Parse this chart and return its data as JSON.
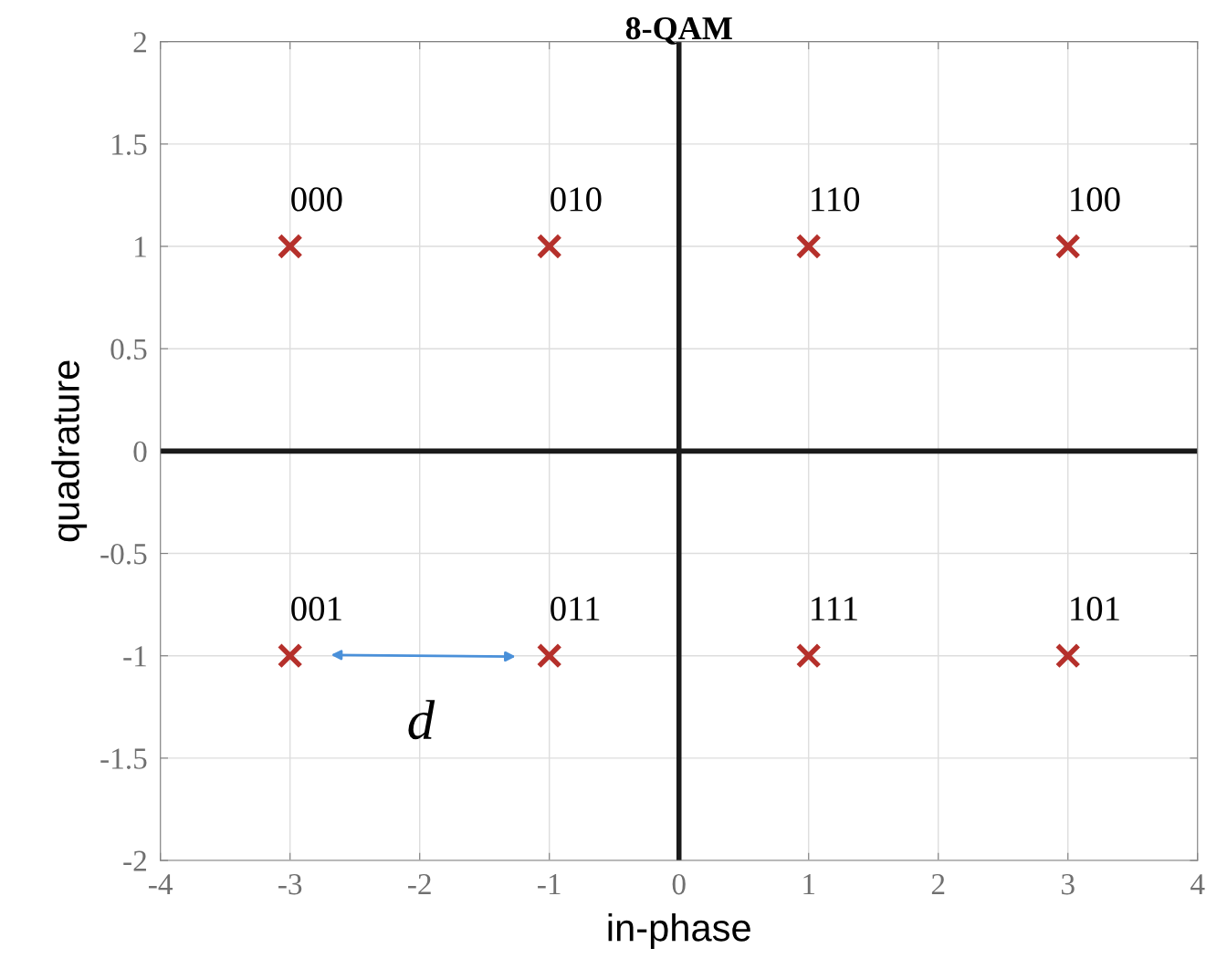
{
  "chart_data": {
    "type": "scatter",
    "title": "8-QAM",
    "xlabel": "in-phase",
    "ylabel": "quadrature",
    "series": [
      {
        "type": "line",
        "marker": "none",
        "color": "#1a1a1a",
        "x": [
          -4,
          4
        ],
        "values": [
          0,
          0
        ]
      },
      {
        "type": "line",
        "marker": "none",
        "color": "#1a1a1a",
        "x": [
          0,
          0
        ],
        "values": [
          -2,
          2
        ]
      },
      {
        "marker": "cross",
        "color": "#b5302b",
        "x": [
          -3,
          -1,
          1,
          3,
          -3,
          -1,
          1,
          3
        ],
        "values": [
          1,
          1,
          1,
          1,
          -1,
          -1,
          -1,
          -1
        ]
      }
    ],
    "grid": true,
    "legend": false,
    "xlim": [
      -4,
      4
    ],
    "ylim": [
      -2,
      2
    ],
    "xticks": [
      -4,
      -3,
      -2,
      -1,
      0,
      1,
      2,
      3,
      4
    ],
    "yticks": [
      -2,
      -1.5,
      -1,
      -0.5,
      0,
      0.5,
      1,
      1.5,
      2
    ],
    "annotations": [
      {
        "text": "000",
        "x": -3,
        "y": 1
      },
      {
        "text": "010",
        "x": -1,
        "y": 1
      },
      {
        "text": "110",
        "x": 1,
        "y": 1
      },
      {
        "text": "100",
        "x": 3,
        "y": 1
      },
      {
        "text": "001",
        "x": -3,
        "y": -1
      },
      {
        "text": "011",
        "x": -1,
        "y": -1
      },
      {
        "text": "111",
        "x": 1,
        "y": -1
      },
      {
        "text": "101",
        "x": 3,
        "y": -1
      },
      "d"
    ]
  }
}
